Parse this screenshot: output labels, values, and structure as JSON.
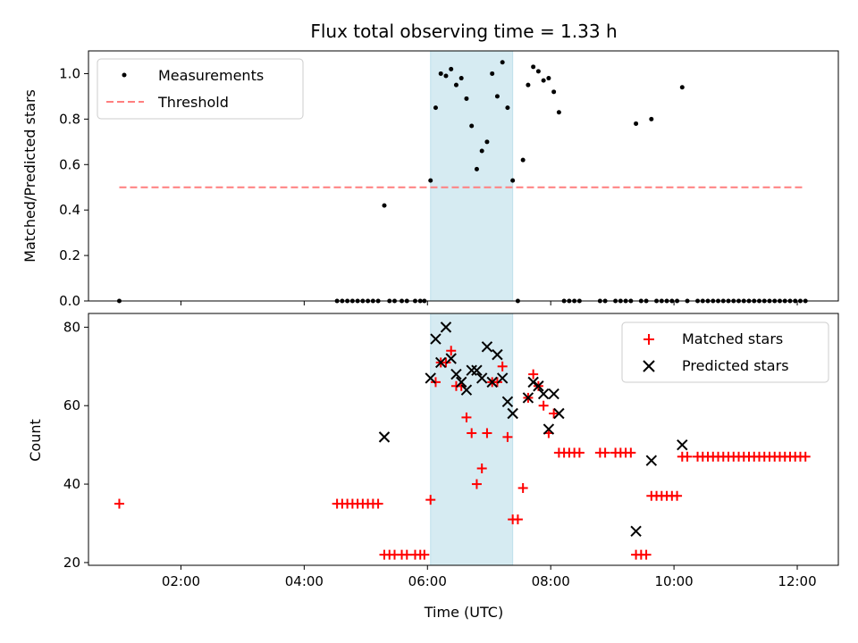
{
  "chart_data": [
    {
      "type": "scatter",
      "title": "Flux total observing time = 1.33 h",
      "xlabel": "",
      "ylabel": "Matched/Predicted stars",
      "x_unit": "time of day (UTC), hh:mm",
      "xlim": [
        "00:30",
        "12:40"
      ],
      "ylim": [
        0.0,
        1.1
      ],
      "yticks": [
        "0.0",
        "0.2",
        "0.4",
        "0.6",
        "0.8",
        "1.0"
      ],
      "grid": false,
      "legend_position": "top-left",
      "shaded_span": {
        "from": "06:03",
        "to": "07:23",
        "color": "#add8e6"
      },
      "series": [
        {
          "name": "Measurements",
          "color": "#000000",
          "marker": "dot",
          "points": [
            [
              "01:00",
              0.0
            ],
            [
              "04:32",
              0.0
            ],
            [
              "04:37",
              0.0
            ],
            [
              "04:42",
              0.0
            ],
            [
              "04:47",
              0.0
            ],
            [
              "04:52",
              0.0
            ],
            [
              "04:57",
              0.0
            ],
            [
              "05:02",
              0.0
            ],
            [
              "05:07",
              0.0
            ],
            [
              "05:12",
              0.0
            ],
            [
              "05:18",
              0.42
            ],
            [
              "05:23",
              0.0
            ],
            [
              "05:28",
              0.0
            ],
            [
              "05:35",
              0.0
            ],
            [
              "05:40",
              0.0
            ],
            [
              "05:48",
              0.0
            ],
            [
              "05:53",
              0.0
            ],
            [
              "05:57",
              0.0
            ],
            [
              "06:03",
              0.53
            ],
            [
              "06:08",
              0.85
            ],
            [
              "06:13",
              1.0
            ],
            [
              "06:18",
              0.99
            ],
            [
              "06:23",
              1.02
            ],
            [
              "06:28",
              0.95
            ],
            [
              "06:33",
              0.98
            ],
            [
              "06:38",
              0.89
            ],
            [
              "06:43",
              0.77
            ],
            [
              "06:48",
              0.58
            ],
            [
              "06:53",
              0.66
            ],
            [
              "06:58",
              0.7
            ],
            [
              "07:03",
              1.0
            ],
            [
              "07:08",
              0.9
            ],
            [
              "07:13",
              1.05
            ],
            [
              "07:18",
              0.85
            ],
            [
              "07:23",
              0.53
            ],
            [
              "07:28",
              0.0
            ],
            [
              "07:33",
              0.62
            ],
            [
              "07:38",
              0.95
            ],
            [
              "07:43",
              1.03
            ],
            [
              "07:48",
              1.01
            ],
            [
              "07:53",
              0.97
            ],
            [
              "07:58",
              0.98
            ],
            [
              "08:03",
              0.92
            ],
            [
              "08:08",
              0.83
            ],
            [
              "08:13",
              0.0
            ],
            [
              "08:18",
              0.0
            ],
            [
              "08:23",
              0.0
            ],
            [
              "08:28",
              0.0
            ],
            [
              "08:48",
              0.0
            ],
            [
              "08:53",
              0.0
            ],
            [
              "09:03",
              0.0
            ],
            [
              "09:08",
              0.0
            ],
            [
              "09:13",
              0.0
            ],
            [
              "09:18",
              0.0
            ],
            [
              "09:23",
              0.78
            ],
            [
              "09:28",
              0.0
            ],
            [
              "09:33",
              0.0
            ],
            [
              "09:38",
              0.8
            ],
            [
              "09:43",
              0.0
            ],
            [
              "09:48",
              0.0
            ],
            [
              "09:53",
              0.0
            ],
            [
              "09:58",
              0.0
            ],
            [
              "10:03",
              0.0
            ],
            [
              "10:08",
              0.94
            ],
            [
              "10:13",
              0.0
            ],
            [
              "10:23",
              0.0
            ],
            [
              "10:28",
              0.0
            ],
            [
              "10:33",
              0.0
            ],
            [
              "10:38",
              0.0
            ],
            [
              "10:43",
              0.0
            ],
            [
              "10:48",
              0.0
            ],
            [
              "10:53",
              0.0
            ],
            [
              "10:58",
              0.0
            ],
            [
              "11:03",
              0.0
            ],
            [
              "11:08",
              0.0
            ],
            [
              "11:13",
              0.0
            ],
            [
              "11:18",
              0.0
            ],
            [
              "11:23",
              0.0
            ],
            [
              "11:28",
              0.0
            ],
            [
              "11:33",
              0.0
            ],
            [
              "11:38",
              0.0
            ],
            [
              "11:43",
              0.0
            ],
            [
              "11:48",
              0.0
            ],
            [
              "11:53",
              0.0
            ],
            [
              "11:58",
              0.0
            ],
            [
              "12:03",
              0.0
            ],
            [
              "12:08",
              0.0
            ]
          ]
        },
        {
          "name": "Threshold",
          "color": "#ff7f7f",
          "line_style": "dashed",
          "points": [
            [
              "01:00",
              0.5
            ],
            [
              "12:08",
              0.5
            ]
          ]
        }
      ]
    },
    {
      "type": "scatter",
      "title": "",
      "xlabel": "Time (UTC)",
      "ylabel": "Count",
      "xlim": [
        "00:30",
        "12:40"
      ],
      "xticks": [
        "02:00",
        "04:00",
        "06:00",
        "08:00",
        "10:00",
        "12:00"
      ],
      "ylim": [
        19.3,
        83.5
      ],
      "yticks": [
        "20",
        "40",
        "60",
        "80"
      ],
      "grid": false,
      "legend_position": "top-right",
      "shaded_span": {
        "from": "06:03",
        "to": "07:23",
        "color": "#add8e6"
      },
      "series": [
        {
          "name": "Matched stars",
          "color": "#ff0000",
          "marker": "plus",
          "points": [
            [
              "01:00",
              35
            ],
            [
              "04:32",
              35
            ],
            [
              "04:37",
              35
            ],
            [
              "04:42",
              35
            ],
            [
              "04:47",
              35
            ],
            [
              "04:52",
              35
            ],
            [
              "04:57",
              35
            ],
            [
              "05:02",
              35
            ],
            [
              "05:07",
              35
            ],
            [
              "05:12",
              35
            ],
            [
              "05:18",
              22
            ],
            [
              "05:23",
              22
            ],
            [
              "05:28",
              22
            ],
            [
              "05:35",
              22
            ],
            [
              "05:40",
              22
            ],
            [
              "05:48",
              22
            ],
            [
              "05:53",
              22
            ],
            [
              "05:57",
              22
            ],
            [
              "06:03",
              36
            ],
            [
              "06:08",
              66
            ],
            [
              "06:13",
              71
            ],
            [
              "06:18",
              71
            ],
            [
              "06:23",
              74
            ],
            [
              "06:28",
              65
            ],
            [
              "06:33",
              65
            ],
            [
              "06:38",
              57
            ],
            [
              "06:43",
              53
            ],
            [
              "06:48",
              40
            ],
            [
              "06:53",
              44
            ],
            [
              "06:58",
              53
            ],
            [
              "07:03",
              66
            ],
            [
              "07:08",
              66
            ],
            [
              "07:13",
              70
            ],
            [
              "07:18",
              52
            ],
            [
              "07:23",
              31
            ],
            [
              "07:28",
              31
            ],
            [
              "07:33",
              39
            ],
            [
              "07:38",
              62
            ],
            [
              "07:43",
              68
            ],
            [
              "07:48",
              65
            ],
            [
              "07:53",
              60
            ],
            [
              "07:58",
              53
            ],
            [
              "08:03",
              58
            ],
            [
              "08:08",
              48
            ],
            [
              "08:13",
              48
            ],
            [
              "08:18",
              48
            ],
            [
              "08:23",
              48
            ],
            [
              "08:28",
              48
            ],
            [
              "08:48",
              48
            ],
            [
              "08:53",
              48
            ],
            [
              "09:03",
              48
            ],
            [
              "09:08",
              48
            ],
            [
              "09:13",
              48
            ],
            [
              "09:18",
              48
            ],
            [
              "09:23",
              22
            ],
            [
              "09:28",
              22
            ],
            [
              "09:33",
              22
            ],
            [
              "09:38",
              37
            ],
            [
              "09:43",
              37
            ],
            [
              "09:48",
              37
            ],
            [
              "09:53",
              37
            ],
            [
              "09:58",
              37
            ],
            [
              "10:03",
              37
            ],
            [
              "10:08",
              47
            ],
            [
              "10:13",
              47
            ],
            [
              "10:23",
              47
            ],
            [
              "10:28",
              47
            ],
            [
              "10:33",
              47
            ],
            [
              "10:38",
              47
            ],
            [
              "10:43",
              47
            ],
            [
              "10:48",
              47
            ],
            [
              "10:53",
              47
            ],
            [
              "10:58",
              47
            ],
            [
              "11:03",
              47
            ],
            [
              "11:08",
              47
            ],
            [
              "11:13",
              47
            ],
            [
              "11:18",
              47
            ],
            [
              "11:23",
              47
            ],
            [
              "11:28",
              47
            ],
            [
              "11:33",
              47
            ],
            [
              "11:38",
              47
            ],
            [
              "11:43",
              47
            ],
            [
              "11:48",
              47
            ],
            [
              "11:53",
              47
            ],
            [
              "11:58",
              47
            ],
            [
              "12:03",
              47
            ],
            [
              "12:08",
              47
            ]
          ]
        },
        {
          "name": "Predicted stars",
          "color": "#000000",
          "marker": "x",
          "points": [
            [
              "05:18",
              52
            ],
            [
              "06:03",
              67
            ],
            [
              "06:08",
              77
            ],
            [
              "06:13",
              71
            ],
            [
              "06:18",
              80
            ],
            [
              "06:23",
              72
            ],
            [
              "06:28",
              68
            ],
            [
              "06:33",
              66
            ],
            [
              "06:38",
              64
            ],
            [
              "06:43",
              69
            ],
            [
              "06:48",
              69
            ],
            [
              "06:53",
              67
            ],
            [
              "06:58",
              75
            ],
            [
              "07:03",
              66
            ],
            [
              "07:08",
              73
            ],
            [
              "07:13",
              67
            ],
            [
              "07:18",
              61
            ],
            [
              "07:23",
              58
            ],
            [
              "07:38",
              62
            ],
            [
              "07:43",
              66
            ],
            [
              "07:48",
              65
            ],
            [
              "07:53",
              63
            ],
            [
              "07:58",
              54
            ],
            [
              "08:03",
              63
            ],
            [
              "08:08",
              58
            ],
            [
              "09:23",
              28
            ],
            [
              "09:38",
              46
            ],
            [
              "10:08",
              50
            ]
          ]
        }
      ]
    }
  ]
}
